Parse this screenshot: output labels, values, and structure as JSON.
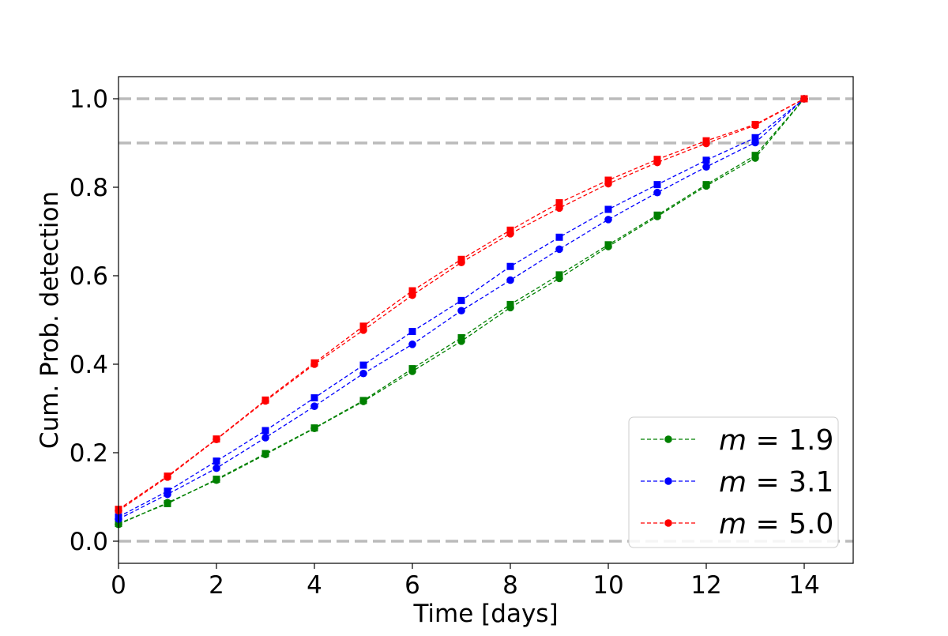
{
  "chart_data": {
    "type": "line",
    "xlabel": "Time [days]",
    "ylabel": "Cum. Prob. detection",
    "xlim": [
      0,
      15
    ],
    "ylim": [
      -0.05,
      1.05
    ],
    "xticks": [
      "0",
      "2",
      "4",
      "6",
      "8",
      "10",
      "12",
      "14"
    ],
    "yticks": [
      "0.0",
      "0.2",
      "0.4",
      "0.6",
      "0.8",
      "1.0"
    ],
    "grid": false,
    "reference_lines": [
      0.0,
      0.9,
      1.0
    ],
    "reference_line_color": "#bbbbbb",
    "legend_placement": "bottom-right",
    "x": [
      0,
      1,
      2,
      3,
      4,
      5,
      6,
      7,
      8,
      9,
      10,
      11,
      12,
      13,
      14
    ],
    "series": [
      {
        "name": "m = 1.9",
        "legend_var": "m",
        "legend_value": "1.9",
        "color": "#008000",
        "variants": [
          {
            "marker": "square",
            "values": [
              0.04,
              0.085,
              0.14,
              0.198,
              0.256,
              0.318,
              0.39,
              0.46,
              0.535,
              0.602,
              0.67,
              0.737,
              0.806,
              0.872,
              1.0
            ]
          },
          {
            "marker": "circle",
            "values": [
              0.038,
              0.087,
              0.138,
              0.196,
              0.255,
              0.316,
              0.384,
              0.452,
              0.528,
              0.594,
              0.666,
              0.734,
              0.803,
              0.866,
              1.0
            ]
          }
        ]
      },
      {
        "name": "m = 3.1",
        "legend_var": "m",
        "legend_value": "3.1",
        "color": "#0000ff",
        "variants": [
          {
            "marker": "square",
            "values": [
              0.055,
              0.113,
              0.181,
              0.25,
              0.324,
              0.398,
              0.474,
              0.544,
              0.621,
              0.687,
              0.75,
              0.806,
              0.861,
              0.912,
              1.0
            ]
          },
          {
            "marker": "circle",
            "values": [
              0.05,
              0.106,
              0.165,
              0.234,
              0.305,
              0.379,
              0.445,
              0.521,
              0.59,
              0.66,
              0.727,
              0.788,
              0.846,
              0.901,
              1.0
            ]
          }
        ]
      },
      {
        "name": "m = 5.0",
        "legend_var": "m",
        "legend_value": "5.0",
        "color": "#ff0000",
        "variants": [
          {
            "marker": "square",
            "values": [
              0.072,
              0.147,
              0.231,
              0.319,
              0.403,
              0.486,
              0.566,
              0.637,
              0.703,
              0.765,
              0.816,
              0.863,
              0.905,
              0.942,
              1.0
            ]
          },
          {
            "marker": "circle",
            "values": [
              0.069,
              0.145,
              0.23,
              0.317,
              0.4,
              0.477,
              0.556,
              0.63,
              0.695,
              0.753,
              0.808,
              0.856,
              0.899,
              0.94,
              1.0
            ]
          }
        ]
      }
    ]
  }
}
